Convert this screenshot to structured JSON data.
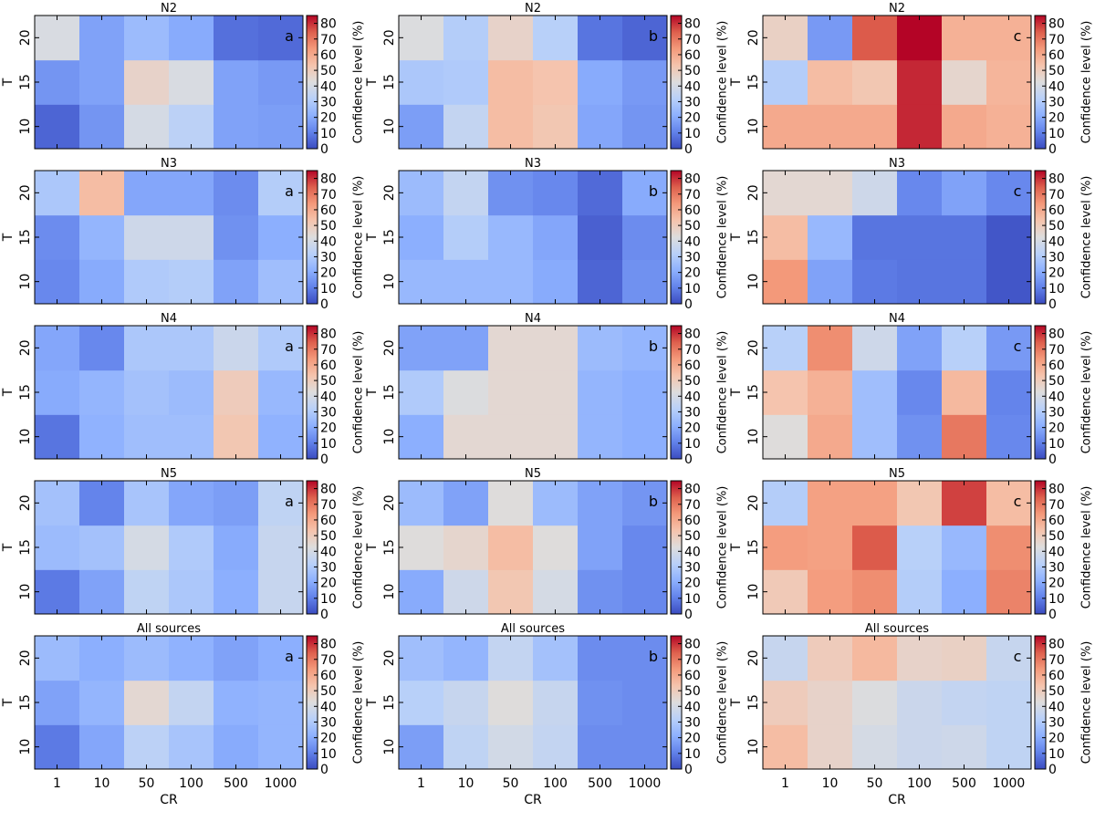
{
  "chart_data": {
    "type": "heatmap",
    "categories_x": [
      "1",
      "10",
      "50",
      "100",
      "500",
      "1000"
    ],
    "categories_y": [
      "10",
      "15",
      "20"
    ],
    "xlabel": "CR",
    "ylabel": "T",
    "colorbar": {
      "label": "Confidence level (%)",
      "range": [
        0,
        85
      ],
      "ticks": [
        "0",
        "10",
        "20",
        "30",
        "40",
        "50",
        "60",
        "70",
        "80"
      ],
      "colormap": "coolwarm"
    },
    "column_labels": [
      "a",
      "b",
      "c"
    ],
    "rows": [
      {
        "title": "N2",
        "panels": [
          [
            [
              5,
              15,
              40,
              33,
              18,
              17
            ],
            [
              15,
              18,
              47,
              41,
              18,
              16
            ],
            [
              41,
              18,
              25,
              20,
              7,
              6
            ]
          ],
          [
            [
              17,
              35,
              55,
              52,
              19,
              15
            ],
            [
              29,
              30,
              55,
              53,
              20,
              16
            ],
            [
              42,
              31,
              47,
              32,
              8,
              5
            ]
          ],
          [
            [
              60,
              60,
              60,
              81,
              60,
              58
            ],
            [
              31,
              55,
              52,
              81,
              46,
              57
            ],
            [
              48,
              16,
              75,
              85,
              58,
              58
            ]
          ]
        ]
      },
      {
        "title": "N3",
        "panels": [
          [
            [
              12,
              20,
              30,
              31,
              18,
              26
            ],
            [
              13,
              23,
              38,
              38,
              14,
              21
            ],
            [
              29,
              55,
              19,
              19,
              13,
              31
            ]
          ],
          [
            [
              24,
              24,
              24,
              20,
              5,
              14
            ],
            [
              21,
              31,
              24,
              19,
              4,
              13
            ],
            [
              25,
              35,
              14,
              12,
              6,
              20
            ]
          ],
          [
            [
              64,
              18,
              9,
              8,
              8,
              2
            ],
            [
              55,
              24,
              8,
              8,
              8,
              2
            ],
            [
              45,
              45,
              38,
              12,
              18,
              12
            ]
          ]
        ]
      },
      {
        "title": "N4",
        "panels": [
          [
            [
              8,
              22,
              26,
              26,
              52,
              22
            ],
            [
              20,
              23,
              27,
              25,
              50,
              24
            ],
            [
              19,
              12,
              29,
              29,
              37,
              30
            ]
          ],
          [
            [
              21,
              45,
              45,
              45,
              23,
              21
            ],
            [
              30,
              42,
              45,
              45,
              23,
              21
            ],
            [
              18,
              18,
              45,
              45,
              25,
              23
            ]
          ],
          [
            [
              43,
              60,
              26,
              14,
              70,
              12
            ],
            [
              53,
              58,
              26,
              12,
              56,
              11
            ],
            [
              32,
              66,
              38,
              18,
              32,
              16
            ]
          ]
        ]
      },
      {
        "title": "N5",
        "panels": [
          [
            [
              9,
              18,
              34,
              29,
              21,
              36
            ],
            [
              25,
              27,
              40,
              30,
              20,
              36
            ],
            [
              27,
              11,
              28,
              19,
              17,
              34
            ]
          ],
          [
            [
              20,
              38,
              52,
              40,
              14,
              12
            ],
            [
              43,
              46,
              55,
              43,
              18,
              12
            ],
            [
              25,
              18,
              43,
              25,
              18,
              15
            ]
          ],
          [
            [
              51,
              63,
              66,
              31,
              21,
              68
            ],
            [
              63,
              62,
              75,
              32,
              24,
              66
            ],
            [
              31,
              62,
              62,
              52,
              78,
              55
            ]
          ]
        ]
      },
      {
        "title": "All sources",
        "panels": [
          [
            [
              9,
              19,
              33,
              28,
              20,
              23
            ],
            [
              18,
              23,
              45,
              35,
              22,
              23
            ],
            [
              25,
              21,
              25,
              22,
              18,
              21
            ]
          ],
          [
            [
              17,
              34,
              39,
              35,
              13,
              13
            ],
            [
              32,
              36,
              43,
              36,
              14,
              13
            ],
            [
              26,
              23,
              35,
              27,
              13,
              13
            ]
          ],
          [
            [
              55,
              47,
              40,
              37,
              38,
              34
            ],
            [
              50,
              47,
              42,
              37,
              35,
              34
            ],
            [
              36,
              50,
              56,
              47,
              48,
              36
            ]
          ]
        ]
      }
    ]
  }
}
